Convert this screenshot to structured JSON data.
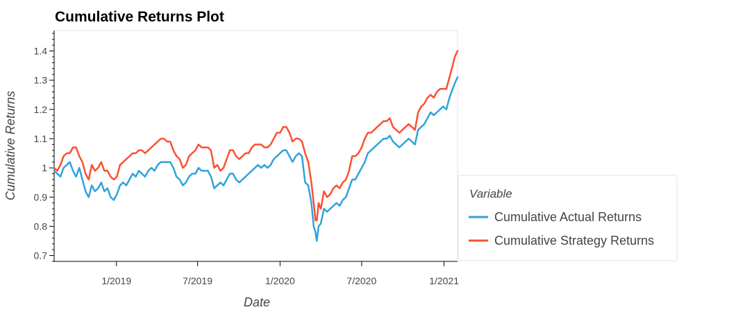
{
  "chart_data": {
    "type": "line",
    "title": "Cumulative Returns Plot",
    "xlabel": "Date",
    "ylabel": "Cumulative Returns",
    "legend": {
      "title": "Variable",
      "placement": "right"
    },
    "ylim": [
      0.68,
      1.47
    ],
    "xlim": [
      "2018-08-15",
      "2021-01-31"
    ],
    "y_ticks": [
      0.7,
      0.8,
      0.9,
      1.0,
      1.1,
      1.2,
      1.3,
      1.4
    ],
    "y_tick_labels": [
      "0.7",
      "0.8",
      "0.9",
      "1",
      "1.1",
      "1.2",
      "1.3",
      "1.4"
    ],
    "x_ticks": [
      "2019-01-01",
      "2019-07-01",
      "2020-01-01",
      "2020-07-01",
      "2021-01-01"
    ],
    "x_tick_labels": [
      "1/2019",
      "7/2019",
      "1/2020",
      "7/2020",
      "1/2021"
    ],
    "grid": false,
    "series": [
      {
        "name": "Cumulative Actual Returns",
        "color": "#30a2da",
        "points": [
          [
            "2018-08-15",
            0.99
          ],
          [
            "2018-08-22",
            0.98
          ],
          [
            "2018-08-29",
            0.97
          ],
          [
            "2018-09-05",
            1.0
          ],
          [
            "2018-09-12",
            1.01
          ],
          [
            "2018-09-19",
            1.02
          ],
          [
            "2018-09-26",
            0.99
          ],
          [
            "2018-10-03",
            0.97
          ],
          [
            "2018-10-10",
            1.0
          ],
          [
            "2018-10-17",
            0.96
          ],
          [
            "2018-10-24",
            0.92
          ],
          [
            "2018-10-31",
            0.9
          ],
          [
            "2018-11-07",
            0.94
          ],
          [
            "2018-11-14",
            0.92
          ],
          [
            "2018-11-21",
            0.93
          ],
          [
            "2018-11-28",
            0.95
          ],
          [
            "2018-12-05",
            0.92
          ],
          [
            "2018-12-12",
            0.93
          ],
          [
            "2018-12-19",
            0.9
          ],
          [
            "2018-12-26",
            0.89
          ],
          [
            "2019-01-02",
            0.91
          ],
          [
            "2019-01-09",
            0.94
          ],
          [
            "2019-01-16",
            0.95
          ],
          [
            "2019-01-23",
            0.94
          ],
          [
            "2019-01-30",
            0.96
          ],
          [
            "2019-02-06",
            0.98
          ],
          [
            "2019-02-13",
            0.97
          ],
          [
            "2019-02-20",
            0.99
          ],
          [
            "2019-02-27",
            0.98
          ],
          [
            "2019-03-06",
            0.97
          ],
          [
            "2019-03-13",
            0.99
          ],
          [
            "2019-03-20",
            1.0
          ],
          [
            "2019-03-27",
            0.99
          ],
          [
            "2019-04-03",
            1.01
          ],
          [
            "2019-04-10",
            1.02
          ],
          [
            "2019-04-17",
            1.02
          ],
          [
            "2019-04-24",
            1.02
          ],
          [
            "2019-05-01",
            1.02
          ],
          [
            "2019-05-08",
            1.0
          ],
          [
            "2019-05-15",
            0.97
          ],
          [
            "2019-05-22",
            0.96
          ],
          [
            "2019-05-29",
            0.94
          ],
          [
            "2019-06-05",
            0.95
          ],
          [
            "2019-06-12",
            0.97
          ],
          [
            "2019-06-19",
            0.98
          ],
          [
            "2019-06-26",
            0.98
          ],
          [
            "2019-07-03",
            1.0
          ],
          [
            "2019-07-10",
            0.99
          ],
          [
            "2019-07-17",
            0.99
          ],
          [
            "2019-07-24",
            0.99
          ],
          [
            "2019-07-31",
            0.97
          ],
          [
            "2019-08-07",
            0.93
          ],
          [
            "2019-08-14",
            0.94
          ],
          [
            "2019-08-21",
            0.95
          ],
          [
            "2019-08-28",
            0.94
          ],
          [
            "2019-09-04",
            0.96
          ],
          [
            "2019-09-11",
            0.98
          ],
          [
            "2019-09-18",
            0.98
          ],
          [
            "2019-09-25",
            0.96
          ],
          [
            "2019-10-02",
            0.95
          ],
          [
            "2019-10-09",
            0.96
          ],
          [
            "2019-10-16",
            0.97
          ],
          [
            "2019-10-23",
            0.98
          ],
          [
            "2019-10-30",
            0.99
          ],
          [
            "2019-11-06",
            1.0
          ],
          [
            "2019-11-13",
            1.01
          ],
          [
            "2019-11-20",
            1.0
          ],
          [
            "2019-11-27",
            1.01
          ],
          [
            "2019-12-04",
            1.0
          ],
          [
            "2019-12-11",
            1.01
          ],
          [
            "2019-12-18",
            1.03
          ],
          [
            "2019-12-25",
            1.04
          ],
          [
            "2020-01-01",
            1.05
          ],
          [
            "2020-01-08",
            1.06
          ],
          [
            "2020-01-15",
            1.06
          ],
          [
            "2020-01-22",
            1.04
          ],
          [
            "2020-01-29",
            1.02
          ],
          [
            "2020-02-05",
            1.04
          ],
          [
            "2020-02-12",
            1.05
          ],
          [
            "2020-02-19",
            1.04
          ],
          [
            "2020-02-26",
            0.95
          ],
          [
            "2020-03-04",
            0.94
          ],
          [
            "2020-03-11",
            0.88
          ],
          [
            "2020-03-16",
            0.8
          ],
          [
            "2020-03-20",
            0.78
          ],
          [
            "2020-03-23",
            0.75
          ],
          [
            "2020-03-27",
            0.8
          ],
          [
            "2020-04-01",
            0.81
          ],
          [
            "2020-04-08",
            0.86
          ],
          [
            "2020-04-15",
            0.85
          ],
          [
            "2020-04-22",
            0.86
          ],
          [
            "2020-04-29",
            0.87
          ],
          [
            "2020-05-06",
            0.88
          ],
          [
            "2020-05-13",
            0.87
          ],
          [
            "2020-05-20",
            0.89
          ],
          [
            "2020-05-27",
            0.9
          ],
          [
            "2020-06-03",
            0.93
          ],
          [
            "2020-06-10",
            0.96
          ],
          [
            "2020-06-17",
            0.96
          ],
          [
            "2020-06-24",
            0.98
          ],
          [
            "2020-07-01",
            1.0
          ],
          [
            "2020-07-08",
            1.02
          ],
          [
            "2020-07-15",
            1.05
          ],
          [
            "2020-07-22",
            1.06
          ],
          [
            "2020-07-29",
            1.07
          ],
          [
            "2020-08-05",
            1.08
          ],
          [
            "2020-08-12",
            1.09
          ],
          [
            "2020-08-19",
            1.1
          ],
          [
            "2020-08-26",
            1.1
          ],
          [
            "2020-09-02",
            1.11
          ],
          [
            "2020-09-09",
            1.09
          ],
          [
            "2020-09-16",
            1.08
          ],
          [
            "2020-09-23",
            1.07
          ],
          [
            "2020-09-30",
            1.08
          ],
          [
            "2020-10-07",
            1.09
          ],
          [
            "2020-10-14",
            1.1
          ],
          [
            "2020-10-21",
            1.09
          ],
          [
            "2020-10-28",
            1.08
          ],
          [
            "2020-11-04",
            1.13
          ],
          [
            "2020-11-11",
            1.14
          ],
          [
            "2020-11-18",
            1.15
          ],
          [
            "2020-11-25",
            1.17
          ],
          [
            "2020-12-02",
            1.19
          ],
          [
            "2020-12-09",
            1.18
          ],
          [
            "2020-12-16",
            1.19
          ],
          [
            "2020-12-23",
            1.2
          ],
          [
            "2020-12-30",
            1.21
          ],
          [
            "2021-01-06",
            1.2
          ],
          [
            "2021-01-13",
            1.24
          ],
          [
            "2021-01-20",
            1.27
          ],
          [
            "2021-01-25",
            1.29
          ],
          [
            "2021-01-31",
            1.31
          ]
        ]
      },
      {
        "name": "Cumulative Strategy Returns",
        "color": "#fc4f30",
        "points": [
          [
            "2018-08-15",
            1.0
          ],
          [
            "2018-08-22",
            0.99
          ],
          [
            "2018-08-29",
            1.01
          ],
          [
            "2018-09-05",
            1.04
          ],
          [
            "2018-09-12",
            1.05
          ],
          [
            "2018-09-19",
            1.05
          ],
          [
            "2018-09-26",
            1.07
          ],
          [
            "2018-10-03",
            1.07
          ],
          [
            "2018-10-10",
            1.04
          ],
          [
            "2018-10-17",
            1.02
          ],
          [
            "2018-10-24",
            0.98
          ],
          [
            "2018-10-31",
            0.96
          ],
          [
            "2018-11-07",
            1.01
          ],
          [
            "2018-11-14",
            0.99
          ],
          [
            "2018-11-21",
            1.0
          ],
          [
            "2018-11-28",
            1.02
          ],
          [
            "2018-12-05",
            0.99
          ],
          [
            "2018-12-12",
            0.99
          ],
          [
            "2018-12-19",
            0.97
          ],
          [
            "2018-12-26",
            0.96
          ],
          [
            "2019-01-02",
            0.97
          ],
          [
            "2019-01-09",
            1.01
          ],
          [
            "2019-01-16",
            1.02
          ],
          [
            "2019-01-23",
            1.03
          ],
          [
            "2019-01-30",
            1.04
          ],
          [
            "2019-02-06",
            1.05
          ],
          [
            "2019-02-13",
            1.05
          ],
          [
            "2019-02-20",
            1.06
          ],
          [
            "2019-02-27",
            1.06
          ],
          [
            "2019-03-06",
            1.05
          ],
          [
            "2019-03-13",
            1.06
          ],
          [
            "2019-03-20",
            1.07
          ],
          [
            "2019-03-27",
            1.08
          ],
          [
            "2019-04-03",
            1.09
          ],
          [
            "2019-04-10",
            1.1
          ],
          [
            "2019-04-17",
            1.1
          ],
          [
            "2019-04-24",
            1.09
          ],
          [
            "2019-05-01",
            1.09
          ],
          [
            "2019-05-08",
            1.06
          ],
          [
            "2019-05-15",
            1.04
          ],
          [
            "2019-05-22",
            1.03
          ],
          [
            "2019-05-29",
            1.0
          ],
          [
            "2019-06-05",
            1.01
          ],
          [
            "2019-06-12",
            1.04
          ],
          [
            "2019-06-19",
            1.05
          ],
          [
            "2019-06-26",
            1.06
          ],
          [
            "2019-07-03",
            1.08
          ],
          [
            "2019-07-10",
            1.07
          ],
          [
            "2019-07-17",
            1.07
          ],
          [
            "2019-07-24",
            1.07
          ],
          [
            "2019-07-31",
            1.06
          ],
          [
            "2019-08-07",
            1.0
          ],
          [
            "2019-08-14",
            1.01
          ],
          [
            "2019-08-21",
            0.99
          ],
          [
            "2019-08-28",
            1.0
          ],
          [
            "2019-09-04",
            1.03
          ],
          [
            "2019-09-11",
            1.06
          ],
          [
            "2019-09-18",
            1.06
          ],
          [
            "2019-09-25",
            1.04
          ],
          [
            "2019-10-02",
            1.03
          ],
          [
            "2019-10-09",
            1.04
          ],
          [
            "2019-10-16",
            1.05
          ],
          [
            "2019-10-23",
            1.05
          ],
          [
            "2019-10-30",
            1.07
          ],
          [
            "2019-11-06",
            1.08
          ],
          [
            "2019-11-13",
            1.08
          ],
          [
            "2019-11-20",
            1.08
          ],
          [
            "2019-11-27",
            1.07
          ],
          [
            "2019-12-04",
            1.07
          ],
          [
            "2019-12-11",
            1.08
          ],
          [
            "2019-12-18",
            1.1
          ],
          [
            "2019-12-25",
            1.12
          ],
          [
            "2020-01-01",
            1.12
          ],
          [
            "2020-01-08",
            1.14
          ],
          [
            "2020-01-15",
            1.14
          ],
          [
            "2020-01-22",
            1.12
          ],
          [
            "2020-01-29",
            1.09
          ],
          [
            "2020-02-05",
            1.1
          ],
          [
            "2020-02-12",
            1.1
          ],
          [
            "2020-02-19",
            1.09
          ],
          [
            "2020-02-26",
            1.05
          ],
          [
            "2020-03-04",
            1.02
          ],
          [
            "2020-03-11",
            0.95
          ],
          [
            "2020-03-16",
            0.88
          ],
          [
            "2020-03-20",
            0.82
          ],
          [
            "2020-03-23",
            0.82
          ],
          [
            "2020-03-27",
            0.88
          ],
          [
            "2020-04-01",
            0.86
          ],
          [
            "2020-04-08",
            0.92
          ],
          [
            "2020-04-15",
            0.9
          ],
          [
            "2020-04-22",
            0.91
          ],
          [
            "2020-04-29",
            0.93
          ],
          [
            "2020-05-06",
            0.94
          ],
          [
            "2020-05-13",
            0.93
          ],
          [
            "2020-05-20",
            0.95
          ],
          [
            "2020-05-27",
            0.96
          ],
          [
            "2020-06-03",
            0.99
          ],
          [
            "2020-06-10",
            1.04
          ],
          [
            "2020-06-17",
            1.04
          ],
          [
            "2020-06-24",
            1.05
          ],
          [
            "2020-07-01",
            1.07
          ],
          [
            "2020-07-08",
            1.1
          ],
          [
            "2020-07-15",
            1.12
          ],
          [
            "2020-07-22",
            1.12
          ],
          [
            "2020-07-29",
            1.13
          ],
          [
            "2020-08-05",
            1.14
          ],
          [
            "2020-08-12",
            1.15
          ],
          [
            "2020-08-19",
            1.16
          ],
          [
            "2020-08-26",
            1.16
          ],
          [
            "2020-09-02",
            1.17
          ],
          [
            "2020-09-09",
            1.14
          ],
          [
            "2020-09-16",
            1.13
          ],
          [
            "2020-09-23",
            1.12
          ],
          [
            "2020-09-30",
            1.13
          ],
          [
            "2020-10-07",
            1.14
          ],
          [
            "2020-10-14",
            1.15
          ],
          [
            "2020-10-21",
            1.14
          ],
          [
            "2020-10-28",
            1.13
          ],
          [
            "2020-11-04",
            1.19
          ],
          [
            "2020-11-11",
            1.21
          ],
          [
            "2020-11-18",
            1.22
          ],
          [
            "2020-11-25",
            1.24
          ],
          [
            "2020-12-02",
            1.25
          ],
          [
            "2020-12-09",
            1.24
          ],
          [
            "2020-12-16",
            1.26
          ],
          [
            "2020-12-23",
            1.27
          ],
          [
            "2020-12-30",
            1.27
          ],
          [
            "2021-01-06",
            1.27
          ],
          [
            "2021-01-13",
            1.31
          ],
          [
            "2021-01-20",
            1.35
          ],
          [
            "2021-01-25",
            1.38
          ],
          [
            "2021-01-31",
            1.4
          ]
        ]
      }
    ]
  }
}
